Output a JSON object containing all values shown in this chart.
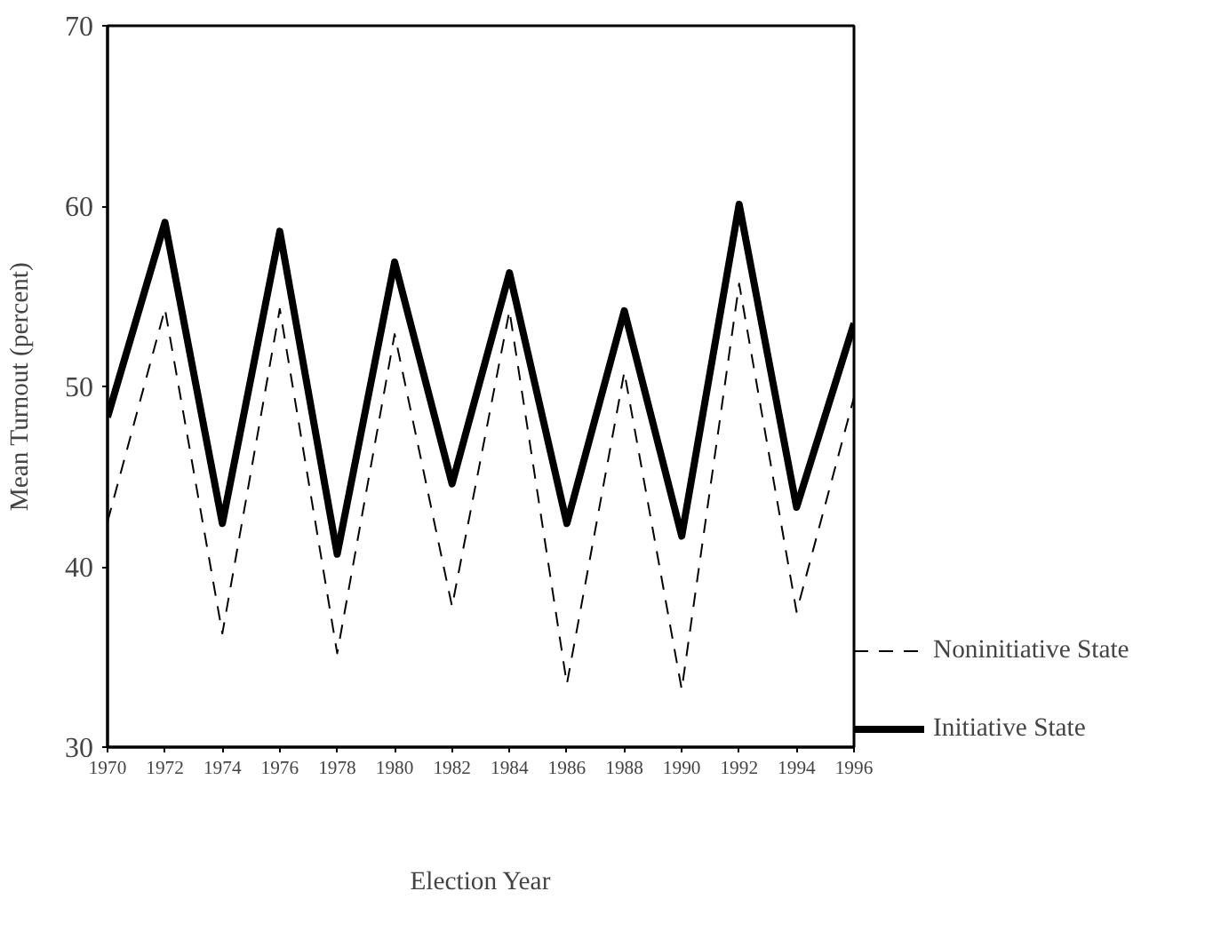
{
  "chart_data": {
    "type": "line",
    "xlabel": "Election Year",
    "ylabel": "Mean Turnout (percent)",
    "x": [
      1970,
      1972,
      1974,
      1976,
      1978,
      1980,
      1982,
      1984,
      1986,
      1988,
      1990,
      1992,
      1994,
      1996
    ],
    "series": [
      {
        "name": "Noninitiative State",
        "color": "#000000",
        "line_style": "dashed",
        "values": [
          42.5,
          54.3,
          36.3,
          54.3,
          35.2,
          52.9,
          37.8,
          54.2,
          33.5,
          50.8,
          33.2,
          55.7,
          37.5,
          49.4
        ]
      },
      {
        "name": "Initiative State",
        "color": "#000000",
        "line_style": "solid",
        "values": [
          48.3,
          59.1,
          42.4,
          58.6,
          40.7,
          56.9,
          44.6,
          56.3,
          42.4,
          54.2,
          41.7,
          60.1,
          43.3,
          53.5
        ]
      }
    ],
    "xlim": [
      1970,
      1996
    ],
    "xticks": [
      1970,
      1972,
      1974,
      1976,
      1978,
      1980,
      1982,
      1984,
      1986,
      1988,
      1990,
      1992,
      1994,
      1996
    ],
    "ylim": [
      30,
      70
    ],
    "yticks": [
      30,
      40,
      50,
      60,
      70
    ],
    "grid": false,
    "legend": "right",
    "marker": "none"
  }
}
